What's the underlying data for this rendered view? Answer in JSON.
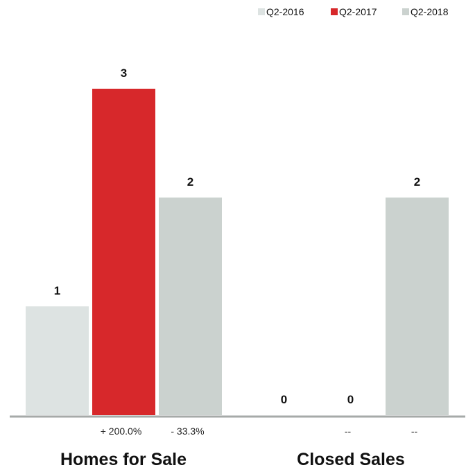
{
  "chart_data": {
    "type": "bar",
    "categories": [
      "Homes for Sale",
      "Closed Sales"
    ],
    "series": [
      {
        "name": "Q2-2016",
        "values": [
          1,
          0
        ],
        "color": "#dde3e2"
      },
      {
        "name": "Q2-2017",
        "values": [
          3,
          0
        ],
        "color": "#d7282b"
      },
      {
        "name": "Q2-2018",
        "values": [
          2,
          2
        ],
        "color": "#cbd2cf"
      }
    ],
    "value_labels": [
      [
        "1",
        "3",
        "2"
      ],
      [
        "0",
        "0",
        "2"
      ]
    ],
    "change_labels": [
      [
        "+ 200.0%",
        "- 33.3%"
      ],
      [
        "--",
        "--"
      ]
    ],
    "legend_position": "top-right",
    "ylim": [
      0,
      3
    ],
    "grid": false,
    "title": "",
    "xlabel": "",
    "ylabel": ""
  }
}
